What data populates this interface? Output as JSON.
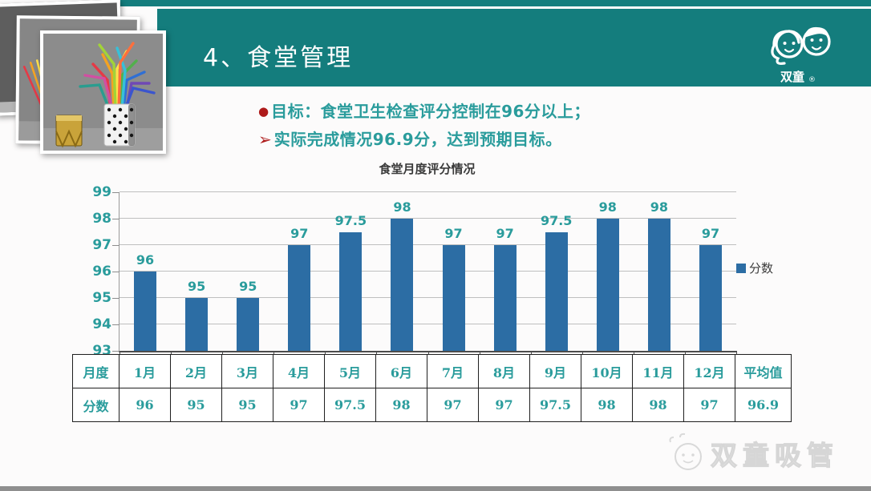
{
  "header": {
    "title": "4、食堂管理",
    "logo_brand": "双童",
    "logo_reg": "®"
  },
  "bullets": [
    {
      "marker": "●",
      "text": "目标：食堂卫生检查评分控制在96分以上；"
    },
    {
      "marker": "➢",
      "text": "实际完成情况96.9分，达到预期目标。"
    }
  ],
  "chart_data": {
    "type": "bar",
    "title": "食堂月度评分情况",
    "categories": [
      "1月",
      "2月",
      "3月",
      "4月",
      "5月",
      "6月",
      "7月",
      "8月",
      "9月",
      "10月",
      "11月",
      "12月"
    ],
    "series": [
      {
        "name": "分数",
        "values": [
          96,
          95,
          95,
          97,
          97.5,
          98,
          97,
          97,
          97.5,
          98,
          98,
          97
        ]
      }
    ],
    "average": 96.9,
    "ylim": [
      93,
      99
    ],
    "yticks": [
      93,
      94,
      95,
      96,
      97,
      98,
      99
    ],
    "grid": true,
    "legend_position": "right",
    "bar_color": "#2c6da4",
    "value_label_color": "#2a9c9c"
  },
  "table": {
    "rows": [
      [
        "月度",
        "1月",
        "2月",
        "3月",
        "4月",
        "5月",
        "6月",
        "7月",
        "8月",
        "9月",
        "10月",
        "11月",
        "12月",
        "平均值"
      ],
      [
        "分数",
        "96",
        "95",
        "95",
        "97",
        "97.5",
        "98",
        "97",
        "97",
        "97.5",
        "98",
        "98",
        "97",
        "96.9"
      ]
    ]
  },
  "watermark": {
    "text": "双童吸管"
  },
  "colors": {
    "teal_band": "#147d7d",
    "accent_red": "#ae1a1a",
    "text_teal": "#2a9c9c",
    "bar_blue": "#2c6da4",
    "footer_gray": "#8f8f8f"
  }
}
